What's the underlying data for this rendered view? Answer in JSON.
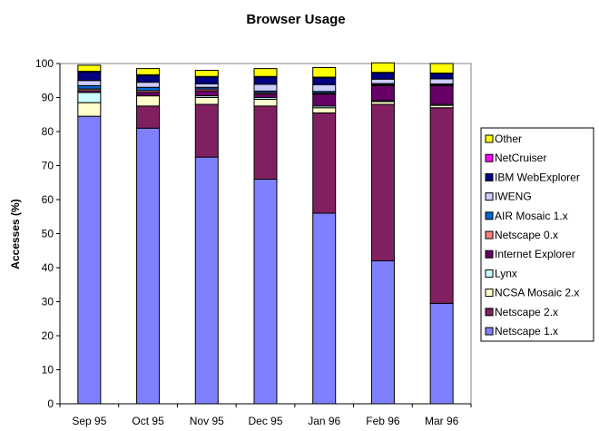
{
  "chart_data": {
    "type": "bar",
    "stacked": true,
    "title": "Browser Usage",
    "xlabel": "",
    "ylabel": "Accesses (%)",
    "ylim": [
      0,
      100
    ],
    "yticks": [
      0,
      10,
      20,
      30,
      40,
      50,
      60,
      70,
      80,
      90,
      100
    ],
    "grid": false,
    "legend_position": "right",
    "categories": [
      "Sep 95",
      "Oct 95",
      "Nov 95",
      "Dec 95",
      "Jan 96",
      "Feb 96",
      "Mar 96"
    ],
    "series": [
      {
        "name": "Netscape 1.x",
        "color": "#8080ff",
        "values": [
          84.5,
          81,
          72.5,
          66,
          56,
          42,
          29.5
        ]
      },
      {
        "name": "Netscape 2.x",
        "color": "#802060",
        "values": [
          0,
          6.5,
          15.5,
          21.5,
          29.5,
          46,
          57.5
        ]
      },
      {
        "name": "NCSA Mosaic 2.x",
        "color": "#ffffcc",
        "values": [
          4,
          3,
          2,
          2,
          1.5,
          0.8,
          0.7
        ]
      },
      {
        "name": "Lynx",
        "color": "#ccffff",
        "values": [
          3,
          0,
          0.5,
          0.5,
          0.5,
          0.3,
          0.3
        ]
      },
      {
        "name": "Internet Explorer",
        "color": "#660066",
        "values": [
          0.5,
          1,
          1.5,
          1,
          3.5,
          4.4,
          5.5
        ]
      },
      {
        "name": "Netscape 0.x",
        "color": "#ff8080",
        "values": [
          0.5,
          0.5,
          0.5,
          0.4,
          0.3,
          0.3,
          0.2
        ]
      },
      {
        "name": "AIR Mosaic 1.x",
        "color": "#0066cc",
        "values": [
          1,
          1,
          0.5,
          0.5,
          0.5,
          0.3,
          0.3
        ]
      },
      {
        "name": "IWENG",
        "color": "#ccccff",
        "values": [
          1.5,
          1.5,
          1,
          2,
          2,
          1.3,
          1.5
        ]
      },
      {
        "name": "IBM WebExplorer",
        "color": "#000080",
        "values": [
          2.5,
          2,
          2,
          2.1,
          2,
          1.8,
          1.5
        ]
      },
      {
        "name": "NetCruiser",
        "color": "#ff00ff",
        "values": [
          0.2,
          0.2,
          0.2,
          0.2,
          0.2,
          0.2,
          0.2
        ]
      },
      {
        "name": "Other",
        "color": "#ffff00",
        "values": [
          1.8,
          1.8,
          1.8,
          2.3,
          2.8,
          2.8,
          2.8
        ]
      }
    ]
  }
}
